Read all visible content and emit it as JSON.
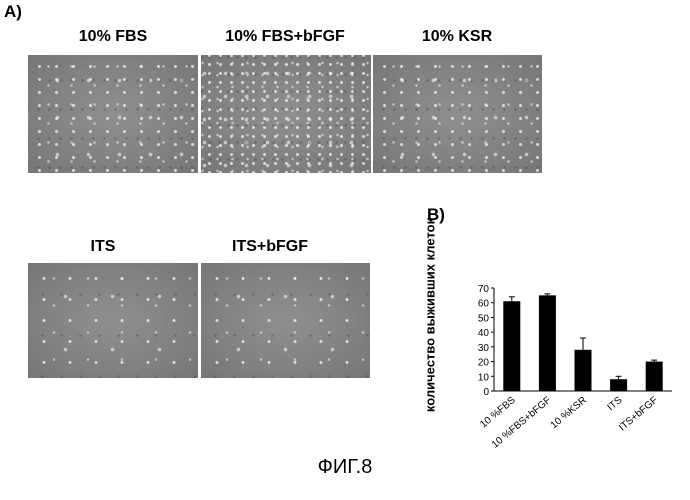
{
  "panels": {
    "a_label": "A)",
    "b_label": "B)",
    "images": [
      {
        "label": "10% FBS",
        "density": "normal"
      },
      {
        "label": "10% FBS+bFGF",
        "density": "dense"
      },
      {
        "label": "10% KSR",
        "density": "normal"
      },
      {
        "label": "ITS",
        "density": "sparse"
      },
      {
        "label": "ITS+bFGF",
        "density": "sparse"
      }
    ]
  },
  "figure_caption": "ФИГ.8",
  "chart_data": {
    "type": "bar",
    "title": "",
    "ylabel": "количество выживших клеток",
    "xlabel": "",
    "categories": [
      "10 %FBS",
      "10 %FBS+bFGF",
      "10 %KSR",
      "ITS",
      "ITS+bFGF"
    ],
    "values": [
      61,
      65,
      28,
      8,
      20
    ],
    "errors": [
      3,
      1,
      8,
      2,
      1
    ],
    "ylim": [
      0,
      70
    ],
    "yticks": [
      "0",
      "10",
      "20",
      "30",
      "40",
      "50",
      "60",
      "70"
    ],
    "bar_color": "#000000",
    "grid": false
  }
}
